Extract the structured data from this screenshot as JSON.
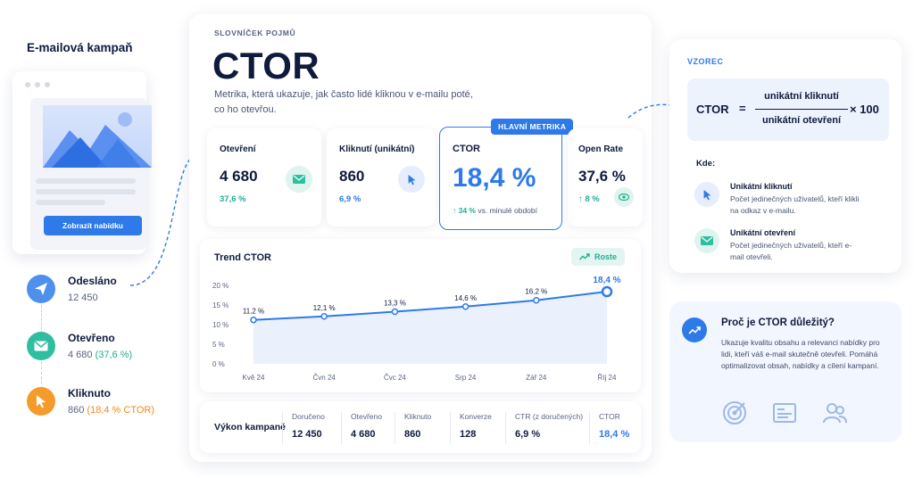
{
  "left": {
    "title": "E-mailová kampaň",
    "email_cta": "Zobrazit nabídku",
    "steps": [
      {
        "title": "Odesláno",
        "value": "12 450",
        "extra": ""
      },
      {
        "title": "Otevřeno",
        "value": "4 680 ",
        "extra": "(37,6 %)"
      },
      {
        "title": "Kliknuto",
        "value": "860 ",
        "extra": "(18,4 % CTOR)"
      }
    ]
  },
  "main": {
    "eyebrow": "SLOVNÍČEK POJMŮ",
    "title": "CTOR",
    "description": "Metrika, která ukazuje, jak často lidé kliknou v e-mailu poté, co ho otevřou.",
    "badge": "HLAVNÍ METRIKA",
    "metrics": [
      {
        "label": "Otevření",
        "value": "4 680",
        "sub": "37,6 %",
        "icon": "mail-icon"
      },
      {
        "label": "Kliknutí (unikátní)",
        "value": "860",
        "sub": "6,9 %",
        "icon": "cursor-icon"
      },
      {
        "label": "CTOR",
        "value": "18,4 %",
        "sub_arrow": "↑ 34 %",
        "sub": "vs. minulé období"
      },
      {
        "label": "Open Rate",
        "value": "37,6 %",
        "sub": "↑ 8 %",
        "icon": "eye-icon"
      }
    ]
  },
  "chart_data": {
    "type": "line",
    "title": "Trend CTOR",
    "trend_badge": "Roste",
    "categories": [
      "Kvě 24",
      "Čvn 24",
      "Čvc 24",
      "Srp 24",
      "Zář 24",
      "Říj 24"
    ],
    "values": [
      11.2,
      12.1,
      13.3,
      14.6,
      16.2,
      18.4
    ],
    "data_labels": [
      "11,2 %",
      "12,1 %",
      "13,3 %",
      "14,6 %",
      "16,2 %",
      "18,4 %"
    ],
    "y_ticks": [
      "0 %",
      "5 %",
      "10 %",
      "15 %",
      "20 %"
    ],
    "y_tick_values": [
      0,
      5,
      10,
      15,
      20
    ],
    "ylim": [
      0,
      20
    ],
    "grid": false,
    "color": "#2d7ae8"
  },
  "summary": {
    "title": "Výkon kampaně",
    "columns": [
      {
        "h": "Doručeno",
        "v": "12 450"
      },
      {
        "h": "Otevřeno",
        "v": "4 680"
      },
      {
        "h": "Kliknuto",
        "v": "860"
      },
      {
        "h": "Konverze",
        "v": "128"
      },
      {
        "h": "CTR (z doručených)",
        "v": "6,9 %"
      },
      {
        "h": "CTOR",
        "v": "18,4 %"
      }
    ]
  },
  "formula": {
    "label": "VZOREC",
    "lhs": "CTOR",
    "eq": "=",
    "numerator": "unikátní kliknutí",
    "denominator": "unikátní otevření",
    "multiplier": "× 100",
    "where": "Kde:",
    "defs": [
      {
        "title": "Unikátní kliknutí",
        "desc": "Počet jedinečných uživatelů, kteří klikli na odkaz v e-mailu."
      },
      {
        "title": "Unikátní otevření",
        "desc": "Počet jedinečných uživatelů, kteří e-mail otevřeli."
      }
    ]
  },
  "why": {
    "title": "Proč je CTOR důležitý?",
    "text": "Ukazuje kvalitu obsahu a relevanci nabídky pro lidi, kteří váš e-mail skutečně otevřeli. Pomáhá optimalizovat obsah, nabídky a cílení kampaní."
  },
  "colors": {
    "accent": "#2d7ae8",
    "green": "#1fae93",
    "orange": "#f59b2a"
  }
}
